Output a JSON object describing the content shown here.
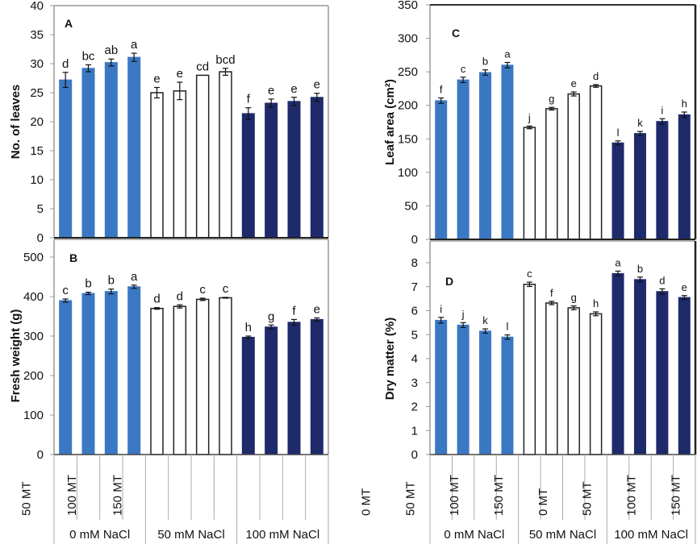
{
  "figure": {
    "colors": {
      "0 mM NaCl": "#3b78c4",
      "50 mM NaCl": "#ffffff",
      "100 mM NaCl": "#1f2a6b",
      "outline": "#222222",
      "frame": "#999999"
    },
    "categories": [
      "0 MT",
      "50 MT",
      "100 MT",
      "150 MT",
      "0 MT",
      "50 MT",
      "100 MT",
      "150 MT",
      "0 MT",
      "50 MT",
      "100 MT",
      "150 MT"
    ],
    "groups": [
      "0 mM NaCl",
      "50 mM NaCl",
      "100 mM NaCl"
    ]
  },
  "chart_data": [
    {
      "panel": "A",
      "type": "bar",
      "title": "",
      "xlabel": "",
      "ylabel": "No. of leaves",
      "ylim": [
        0,
        40
      ],
      "yticks": [
        0,
        5,
        10,
        15,
        20,
        25,
        30,
        35,
        40
      ],
      "categories": [
        "0 MT",
        "50 MT",
        "100 MT",
        "150 MT",
        "0 MT",
        "50 MT",
        "100 MT",
        "150 MT",
        "0 MT",
        "50 MT",
        "100 MT",
        "150 MT"
      ],
      "groups": [
        "0 mM NaCl",
        "50 mM NaCl",
        "100 mM NaCl"
      ],
      "values": [
        27.2,
        29.2,
        30.2,
        31.1,
        25.0,
        25.3,
        28.0,
        28.6,
        21.4,
        23.2,
        23.5,
        24.2
      ],
      "errors": [
        1.3,
        0.6,
        0.6,
        0.7,
        0.9,
        1.5,
        0,
        0.6,
        1.0,
        0.7,
        0.7,
        0.7
      ],
      "labels": [
        "d",
        "bc",
        "ab",
        "a",
        "e",
        "e",
        "cd",
        "bcd",
        "f",
        "e",
        "e",
        "e"
      ]
    },
    {
      "panel": "B",
      "type": "bar",
      "title": "",
      "xlabel": "",
      "ylabel": "Fresh weight (g)",
      "ylim": [
        0,
        500
      ],
      "yticks": [
        0,
        100,
        200,
        300,
        400,
        500
      ],
      "categories": [
        "0 MT",
        "50 MT",
        "100 MT",
        "150 MT",
        "0 MT",
        "50 MT",
        "100 MT",
        "150 MT",
        "0 MT",
        "50 MT",
        "100 MT",
        "150 MT"
      ],
      "groups": [
        "0 mM NaCl",
        "50 mM NaCl",
        "100 mM NaCl"
      ],
      "values": [
        390,
        408,
        413,
        425,
        370,
        375,
        393,
        397,
        297,
        323,
        335,
        342
      ],
      "errors": [
        4,
        3,
        6,
        4,
        2,
        4,
        3,
        1,
        3,
        5,
        7,
        4
      ],
      "labels": [
        "c",
        "b",
        "b",
        "a",
        "d",
        "d",
        "c",
        "c",
        "h",
        "g",
        "f",
        "e"
      ]
    },
    {
      "panel": "C",
      "type": "bar",
      "title": "",
      "xlabel": "",
      "ylabel": "Leaf area (cm²)",
      "ylim": [
        0,
        350
      ],
      "yticks": [
        0,
        50,
        100,
        150,
        200,
        250,
        300,
        350
      ],
      "categories": [
        "0 MT",
        "50 MT",
        "100 MT",
        "150 MT",
        "0 MT",
        "50 MT",
        "100 MT",
        "150 MT",
        "0 MT",
        "50 MT",
        "100 MT",
        "150 MT"
      ],
      "groups": [
        "0 mM NaCl",
        "50 mM NaCl",
        "100 mM NaCl"
      ],
      "values": [
        207,
        238,
        249,
        260,
        167,
        195,
        217,
        229,
        144,
        158,
        176,
        186
      ],
      "errors": [
        4,
        4,
        4,
        4,
        2,
        2,
        3,
        2,
        3,
        3,
        4,
        4
      ],
      "labels": [
        "f",
        "c",
        "b",
        "a",
        "j",
        "g",
        "e",
        "d",
        "l",
        "k",
        "i",
        "h"
      ]
    },
    {
      "panel": "D",
      "type": "bar",
      "title": "",
      "xlabel": "",
      "ylabel": "Dry matter (%)",
      "ylim": [
        0,
        8
      ],
      "yticks": [
        0,
        1,
        2,
        3,
        4,
        5,
        6,
        7,
        8
      ],
      "categories": [
        "0 MT",
        "50 MT",
        "100 MT",
        "150 MT",
        "0 MT",
        "50 MT",
        "100 MT",
        "150 MT",
        "0 MT",
        "50 MT",
        "100 MT",
        "150 MT"
      ],
      "groups": [
        "0 mM NaCl",
        "50 mM NaCl",
        "100 mM NaCl"
      ],
      "values": [
        5.6,
        5.4,
        5.15,
        4.9,
        7.1,
        6.32,
        6.12,
        5.87,
        7.55,
        7.3,
        6.8,
        6.55
      ],
      "errors": [
        0.12,
        0.1,
        0.09,
        0.09,
        0.09,
        0.07,
        0.08,
        0.08,
        0.1,
        0.1,
        0.11,
        0.08
      ],
      "labels": [
        "i",
        "j",
        "k",
        "l",
        "c",
        "f",
        "g",
        "h",
        "a",
        "b",
        "d",
        "e"
      ]
    }
  ]
}
